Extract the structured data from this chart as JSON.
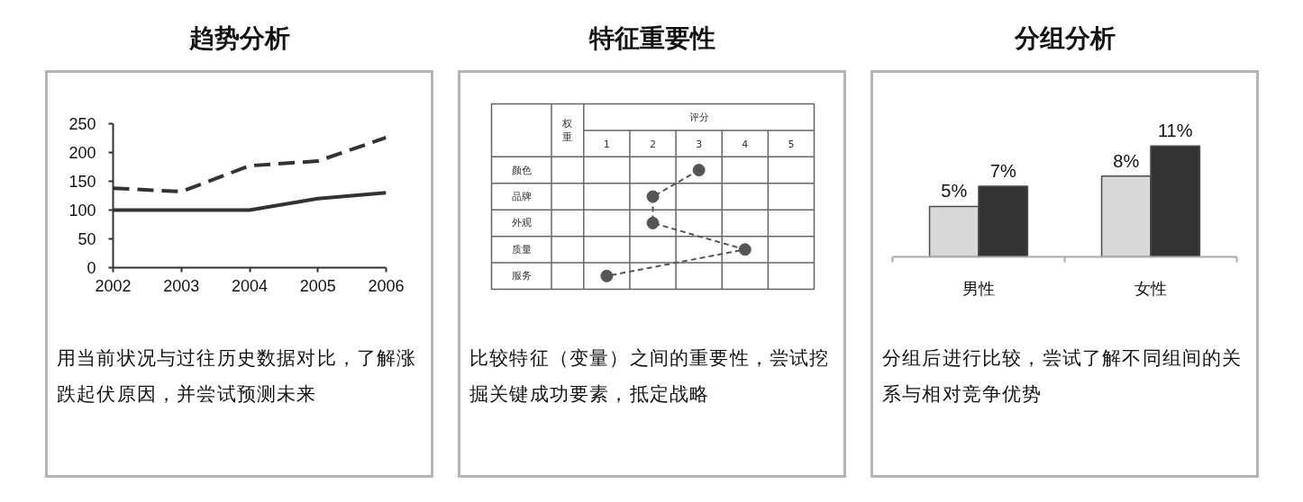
{
  "chart_data": [
    {
      "type": "line",
      "title": "趋势分析",
      "x": [
        2002,
        2003,
        2004,
        2005,
        2006
      ],
      "series": [
        {
          "color": "#333333",
          "line_style": "solid",
          "values": [
            100,
            100,
            100,
            120,
            130
          ]
        },
        {
          "color": "#333333",
          "line_style": "dashed",
          "values": [
            138,
            132,
            177,
            185,
            226
          ]
        }
      ],
      "xlim": [
        2002,
        2006
      ],
      "ylim": [
        0,
        250
      ],
      "xticks": [
        2002,
        2003,
        2004,
        2005,
        2006
      ],
      "yticks": [
        0,
        50,
        100,
        150,
        200,
        250
      ],
      "annotations": [
        "用当前状况与过往历史数据对比，了解涨跌起伏原因，并尝试预测未来"
      ]
    },
    {
      "type": "line",
      "title": "特征重要性",
      "orientation": "horizontal",
      "categories": [
        "颜色",
        "品牌",
        "外观",
        "质量",
        "服务"
      ],
      "values": [
        3,
        2,
        2,
        4,
        1
      ],
      "color": "#555555",
      "xlim": [
        0.5,
        5.5
      ],
      "xticks": [
        1,
        2,
        3,
        4,
        5
      ],
      "xlabel": "评分",
      "marker": "circle",
      "line_style": "dashed",
      "grid": true,
      "annotations": [
        "权重",
        "比较特征（变量）之间的重要性，尝试挖掘关键成功要素，抵定战略"
      ]
    },
    {
      "type": "bar",
      "title": "分组分析",
      "categories": [
        "男性",
        "女性"
      ],
      "series": [
        {
          "color": "#d9d9d9",
          "values": [
            5,
            8
          ],
          "value_labels": [
            "5%",
            "8%"
          ]
        },
        {
          "color": "#333333",
          "values": [
            7,
            11
          ],
          "value_labels": [
            "7%",
            "11%"
          ]
        }
      ],
      "tick_labels": "x",
      "annotations": [
        "分组后进行比较，尝试了解不同组间的关系与相对竞争优势"
      ]
    }
  ]
}
